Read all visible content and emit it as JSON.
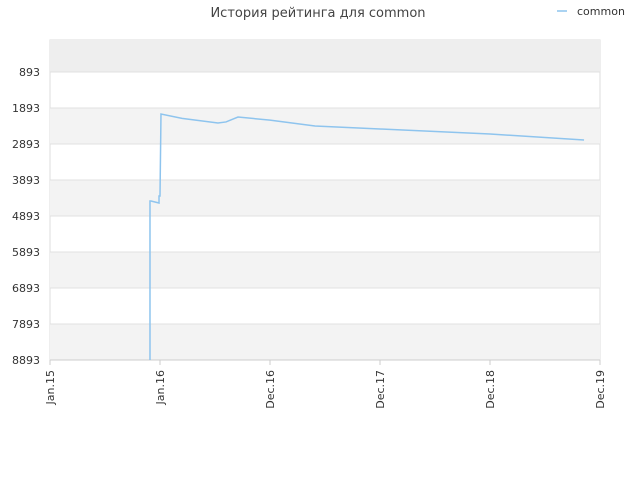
{
  "chart_data": {
    "type": "line",
    "title": "История рейтинга для common",
    "x": [
      0.909,
      0.909,
      0.918,
      0.991,
      0.991,
      1.0,
      1.009,
      1.2,
      1.527,
      1.6,
      1.709,
      2.0,
      2.409,
      3.0,
      4.0,
      4.855
    ],
    "series": [
      {
        "name": "common",
        "color": "#8ec4ee",
        "values": [
          8893,
          4476,
          4476,
          4532,
          4337,
          4337,
          2060,
          2180,
          2310,
          2280,
          2143,
          2230,
          2393,
          2476,
          2615,
          2782
        ]
      }
    ],
    "xlim": [
      0,
      5
    ],
    "xticks": [
      {
        "value": 0,
        "label": "Jan.15"
      },
      {
        "value": 1,
        "label": "Jan.16"
      },
      {
        "value": 2,
        "label": "Dec.16"
      },
      {
        "value": 3,
        "label": "Dec.17"
      },
      {
        "value": 4,
        "label": "Dec.18"
      },
      {
        "value": 5,
        "label": "Dec.19"
      }
    ],
    "ylim": [
      4,
      8893
    ],
    "y_reversed": true,
    "yticks": [
      893,
      1893,
      2893,
      3893,
      4893,
      5893,
      6893,
      7893,
      8893
    ],
    "grid": true,
    "legend": "top-right"
  }
}
